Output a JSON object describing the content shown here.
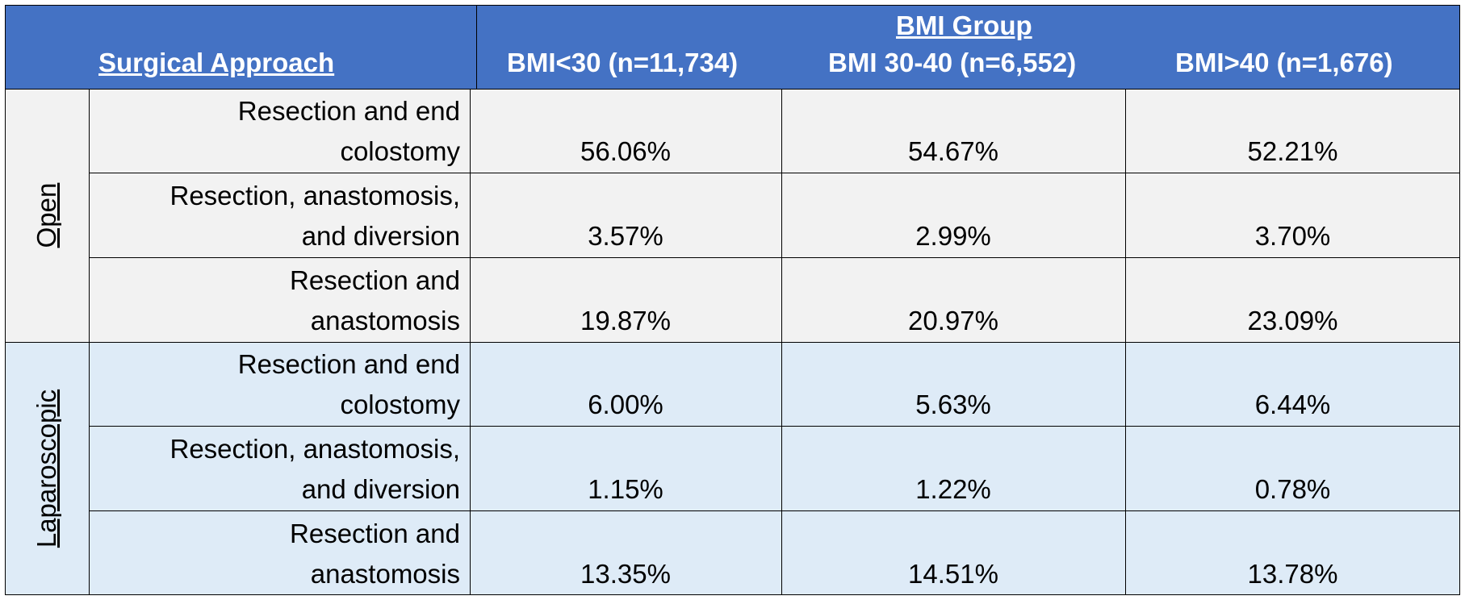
{
  "header": {
    "surgical_approach": "Surgical Approach",
    "bmi_group": "BMI Group",
    "columns": [
      "BMI<30 (n=11,734)",
      "BMI 30-40 (n=6,552)",
      "BMI>40 (n=1,676)"
    ]
  },
  "groups": [
    {
      "label": "Open",
      "rows": [
        {
          "proc": [
            "Resection and end",
            "colostomy"
          ],
          "values": [
            "56.06%",
            "54.67%",
            "52.21%"
          ]
        },
        {
          "proc": [
            "Resection, anastomosis,",
            "and diversion"
          ],
          "values": [
            "3.57%",
            "2.99%",
            "3.70%"
          ]
        },
        {
          "proc": [
            "Resection and",
            "anastomosis"
          ],
          "values": [
            "19.87%",
            "20.97%",
            "23.09%"
          ]
        }
      ]
    },
    {
      "label": "Laparoscopic",
      "rows": [
        {
          "proc": [
            "Resection and end",
            "colostomy"
          ],
          "values": [
            "6.00%",
            "5.63%",
            "6.44%"
          ]
        },
        {
          "proc": [
            "Resection, anastomosis,",
            "and diversion"
          ],
          "values": [
            "1.15%",
            "1.22%",
            "0.78%"
          ]
        },
        {
          "proc": [
            "Resection and",
            "anastomosis"
          ],
          "values": [
            "13.35%",
            "14.51%",
            "13.78%"
          ]
        }
      ]
    }
  ],
  "colors": {
    "header": "#4472c4",
    "open_band": "#f2f2f2",
    "laparoscopic_band": "#deebf7"
  }
}
